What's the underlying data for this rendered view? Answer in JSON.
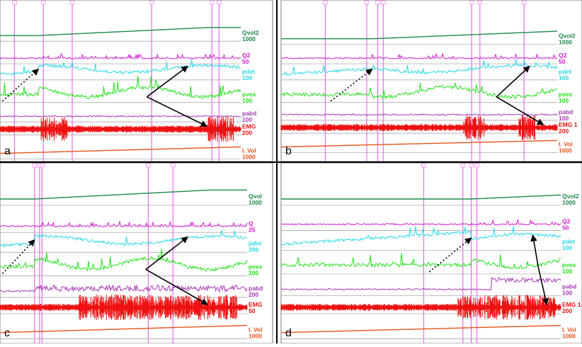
{
  "figure": {
    "channel_colors": {
      "Qvol": "#1e8a4a",
      "Q": "#d21ad2",
      "pdet": "#27d8e8",
      "pves": "#22e01a",
      "pabd": "#a43bb5",
      "EMG": "#ee1111",
      "I. Vol": "#e8541e"
    },
    "panels": [
      {
        "label": "a",
        "channels": [
          {
            "key": "qvol",
            "name": "Qvol2",
            "scale": "1000"
          },
          {
            "key": "q",
            "name": "Q2",
            "scale": "50"
          },
          {
            "key": "pdet",
            "name": "pdet",
            "scale": "100"
          },
          {
            "key": "pves",
            "name": "pves",
            "scale": "100"
          },
          {
            "key": "pabd",
            "name": "pabd",
            "scale": "100"
          },
          {
            "key": "emg",
            "name": "EMG",
            "scale": "200"
          },
          {
            "key": "ivol",
            "name": "I. Vol",
            "scale": "1000"
          }
        ]
      },
      {
        "label": "b",
        "channels": [
          {
            "key": "qvol",
            "name": "Qvol2",
            "scale": "1000"
          },
          {
            "key": "q",
            "name": "Q2",
            "scale": "50"
          },
          {
            "key": "pdet",
            "name": "pdet",
            "scale": "100"
          },
          {
            "key": "pves",
            "name": "pves",
            "scale": "100"
          },
          {
            "key": "pabd",
            "name": "pabd",
            "scale": "100"
          },
          {
            "key": "emg",
            "name": "EMG 1",
            "scale": "200"
          },
          {
            "key": "ivol",
            "name": "I. Vol",
            "scale": "1000"
          }
        ]
      },
      {
        "label": "c",
        "channels": [
          {
            "key": "qvol",
            "name": "Qvol",
            "scale": "1000"
          },
          {
            "key": "q",
            "name": "Q",
            "scale": "25"
          },
          {
            "key": "pdet",
            "name": "pdet",
            "scale": "200"
          },
          {
            "key": "pves",
            "name": "pves",
            "scale": "200"
          },
          {
            "key": "pabd",
            "name": "pabd",
            "scale": "200"
          },
          {
            "key": "emg",
            "name": "EMG",
            "scale": "50"
          },
          {
            "key": "ivol",
            "name": "I. Vol",
            "scale": "1000"
          }
        ]
      },
      {
        "label": "d",
        "channels": [
          {
            "key": "qvol",
            "name": "Qvol2",
            "scale": "1000"
          },
          {
            "key": "q",
            "name": "Q2",
            "scale": "50"
          },
          {
            "key": "pdet",
            "name": "pdet",
            "scale": "100"
          },
          {
            "key": "pves",
            "name": "pves",
            "scale": "100"
          },
          {
            "key": "pabd",
            "name": "pabd",
            "scale": "100"
          },
          {
            "key": "emg",
            "name": "EMG 1",
            "scale": "200"
          },
          {
            "key": "ivol",
            "name": "I. Vol",
            "scale": "1000"
          }
        ]
      }
    ]
  },
  "chart_data": [
    {
      "type": "line",
      "panel": "a",
      "series": [
        {
          "name": "Qvol2"
        },
        {
          "name": "Q2"
        },
        {
          "name": "pdet"
        },
        {
          "name": "pves"
        },
        {
          "name": "pabd"
        },
        {
          "name": "EMG"
        },
        {
          "name": "I. Vol"
        }
      ],
      "annotations": [
        "dotted arrow toward pdet rise",
        "solid arrows toward pdet and EMG"
      ]
    },
    {
      "type": "line",
      "panel": "b",
      "series": [
        {
          "name": "Qvol2"
        },
        {
          "name": "Q2"
        },
        {
          "name": "pdet"
        },
        {
          "name": "pves"
        },
        {
          "name": "pabd"
        },
        {
          "name": "EMG 1"
        },
        {
          "name": "I. Vol"
        }
      ],
      "annotations": [
        "dotted arrow toward pdet rise",
        "solid arrows toward pdet and EMG"
      ]
    },
    {
      "type": "line",
      "panel": "c",
      "series": [
        {
          "name": "Qvol"
        },
        {
          "name": "Q"
        },
        {
          "name": "pdet"
        },
        {
          "name": "pves"
        },
        {
          "name": "pabd"
        },
        {
          "name": "EMG"
        },
        {
          "name": "I. Vol"
        }
      ],
      "annotations": [
        "dotted arrow toward pdet rise",
        "solid arrows toward pdet and EMG"
      ]
    },
    {
      "type": "line",
      "panel": "d",
      "series": [
        {
          "name": "Qvol2"
        },
        {
          "name": "Q2"
        },
        {
          "name": "pdet"
        },
        {
          "name": "pves"
        },
        {
          "name": "pabd"
        },
        {
          "name": "EMG 1"
        },
        {
          "name": "I. Vol"
        }
      ],
      "annotations": [
        "dotted arrow toward pdet rise",
        "solid arrows toward pdet and EMG"
      ]
    }
  ]
}
